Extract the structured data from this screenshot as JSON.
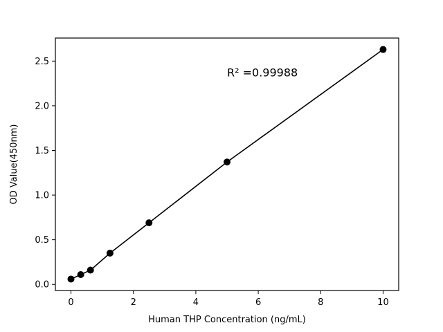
{
  "chart_data": {
    "type": "scatter",
    "title": "",
    "xlabel": "Human THP Concentration (ng/mL)",
    "ylabel": "OD Value(450nm)",
    "x": [
      0,
      0.3125,
      0.625,
      1.25,
      2.5,
      5,
      10
    ],
    "y": [
      0.06,
      0.11,
      0.16,
      0.35,
      0.69,
      1.37,
      2.63
    ],
    "line_through_points": true,
    "xlim": [
      -0.5,
      10.5
    ],
    "ylim": [
      -0.068,
      2.758
    ],
    "xticks": [
      0,
      2,
      4,
      6,
      8,
      10
    ],
    "xtick_labels": [
      "0",
      "2",
      "4",
      "6",
      "8",
      "10"
    ],
    "yticks": [
      0.0,
      0.5,
      1.0,
      1.5,
      2.0,
      2.5
    ],
    "ytick_labels": [
      "0.0",
      "0.5",
      "1.0",
      "1.5",
      "2.0",
      "2.5"
    ],
    "grid": false,
    "legend": null,
    "annotation": {
      "text": "R² =0.99988",
      "x": 5.0,
      "y": 2.33
    },
    "marker_color": "#000000",
    "line_color": "#000000",
    "background_color": "#ffffff",
    "spine_color": "#000000"
  }
}
